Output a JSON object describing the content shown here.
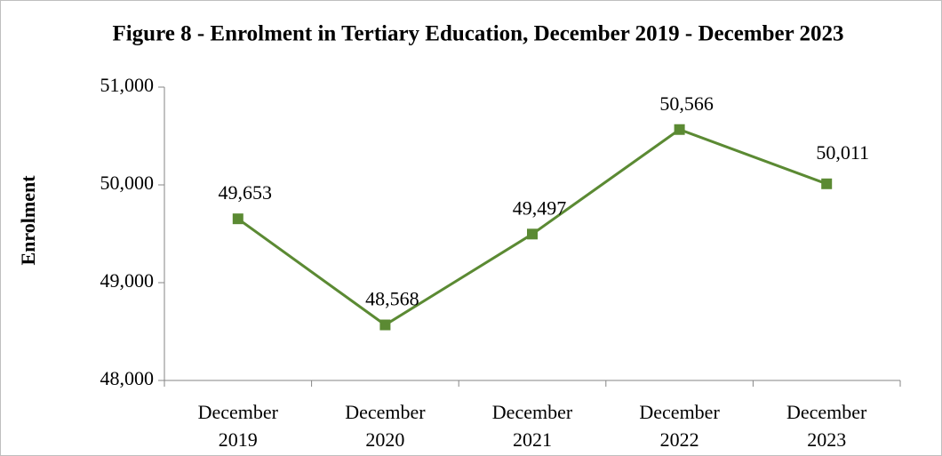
{
  "chart_data": {
    "type": "line",
    "title": "Figure 8 - Enrolment in Tertiary Education, December 2019 - December 2023",
    "y_label": "Enrolment",
    "categories": [
      "December 2019",
      "December 2020",
      "December 2021",
      "December 2022",
      "December 2023"
    ],
    "series": [
      {
        "name": "Enrolment",
        "color": "#5b8a33",
        "values": [
          49653,
          48568,
          49497,
          50566,
          50011
        ],
        "value_labels": [
          "49,653",
          "48,568",
          "49,497",
          "50,566",
          "50,011"
        ]
      }
    ],
    "ylim": [
      48000,
      51000
    ],
    "yticks": [
      {
        "value": 48000,
        "label": "48,000"
      },
      {
        "value": 49000,
        "label": "49,000"
      },
      {
        "value": 50000,
        "label": "50,000"
      },
      {
        "value": 51000,
        "label": "51,000"
      }
    ],
    "grid": false
  }
}
